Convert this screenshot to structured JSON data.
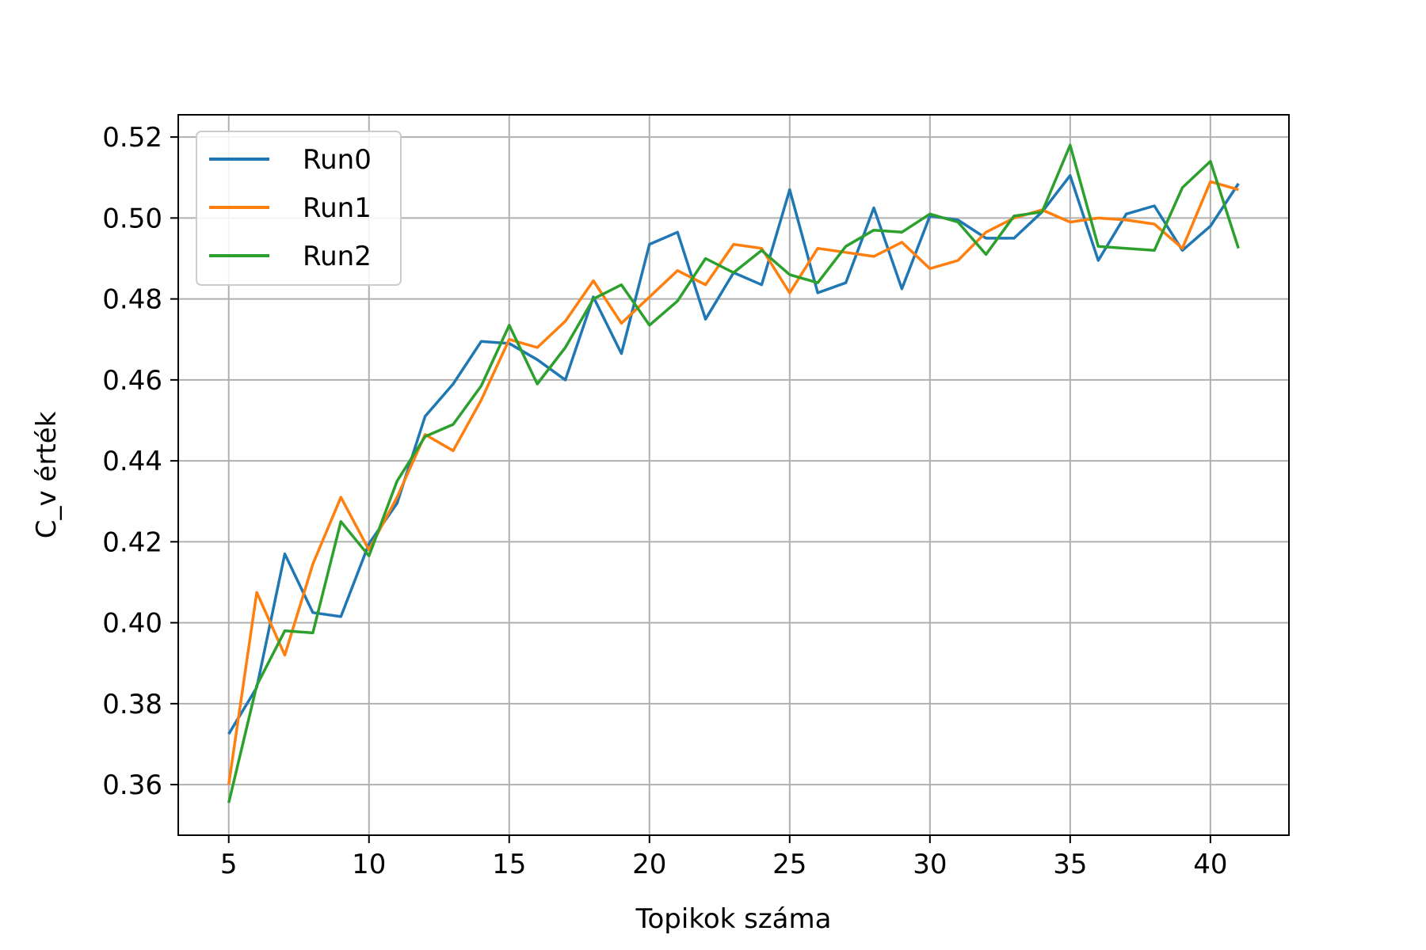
{
  "chart_data": {
    "type": "line",
    "title": "",
    "xlabel": "Topikok száma",
    "ylabel": "C_v érték",
    "xlim": [
      3.2,
      42.8
    ],
    "ylim": [
      0.3475,
      0.5255
    ],
    "xticks": [
      5,
      10,
      15,
      20,
      25,
      30,
      35,
      40
    ],
    "yticks": [
      0.36,
      0.38,
      0.4,
      0.42,
      0.44,
      0.46,
      0.48,
      0.5,
      0.52
    ],
    "xtick_labels": [
      "5",
      "10",
      "15",
      "20",
      "25",
      "30",
      "35",
      "40"
    ],
    "ytick_labels": [
      "0.36",
      "0.38",
      "0.40",
      "0.42",
      "0.44",
      "0.46",
      "0.48",
      "0.50",
      "0.52"
    ],
    "grid": true,
    "legend_position": "top-left",
    "x": [
      5,
      6,
      7,
      8,
      9,
      10,
      11,
      12,
      13,
      14,
      15,
      16,
      17,
      18,
      19,
      20,
      21,
      22,
      23,
      24,
      25,
      26,
      27,
      28,
      29,
      30,
      31,
      32,
      33,
      34,
      35,
      36,
      37,
      38,
      39,
      40,
      41
    ],
    "series": [
      {
        "name": "Run0",
        "color": "#1f77b4",
        "values": [
          0.3725,
          0.384,
          0.417,
          0.4025,
          0.4015,
          0.4195,
          0.4295,
          0.451,
          0.459,
          0.4695,
          0.469,
          0.465,
          0.46,
          0.4805,
          0.4665,
          0.4935,
          0.4965,
          0.475,
          0.4865,
          0.4835,
          0.507,
          0.4815,
          0.484,
          0.5025,
          0.4825,
          0.5005,
          0.4995,
          0.495,
          0.495,
          0.5015,
          0.5105,
          0.4895,
          0.501,
          0.503,
          0.492,
          0.498,
          0.5085
        ]
      },
      {
        "name": "Run1",
        "color": "#ff7f0e",
        "values": [
          0.36,
          0.4075,
          0.392,
          0.4145,
          0.431,
          0.418,
          0.431,
          0.4465,
          0.4425,
          0.455,
          0.47,
          0.468,
          0.4745,
          0.4845,
          0.474,
          0.4805,
          0.487,
          0.4835,
          0.4935,
          0.4925,
          0.4815,
          0.4925,
          0.4915,
          0.4905,
          0.494,
          0.4875,
          0.4895,
          0.4965,
          0.5,
          0.502,
          0.499,
          0.5,
          0.4995,
          0.4985,
          0.4925,
          0.509,
          0.507
        ]
      },
      {
        "name": "Run2",
        "color": "#2ca02c",
        "values": [
          0.3555,
          0.3845,
          0.398,
          0.3975,
          0.425,
          0.4165,
          0.435,
          0.446,
          0.449,
          0.4585,
          0.4735,
          0.459,
          0.468,
          0.48,
          0.4835,
          0.4735,
          0.4795,
          0.49,
          0.4865,
          0.492,
          0.486,
          0.484,
          0.493,
          0.497,
          0.4965,
          0.501,
          0.499,
          0.491,
          0.5005,
          0.5015,
          0.518,
          0.493,
          0.4925,
          0.492,
          0.5075,
          0.514,
          0.4925
        ]
      }
    ]
  }
}
